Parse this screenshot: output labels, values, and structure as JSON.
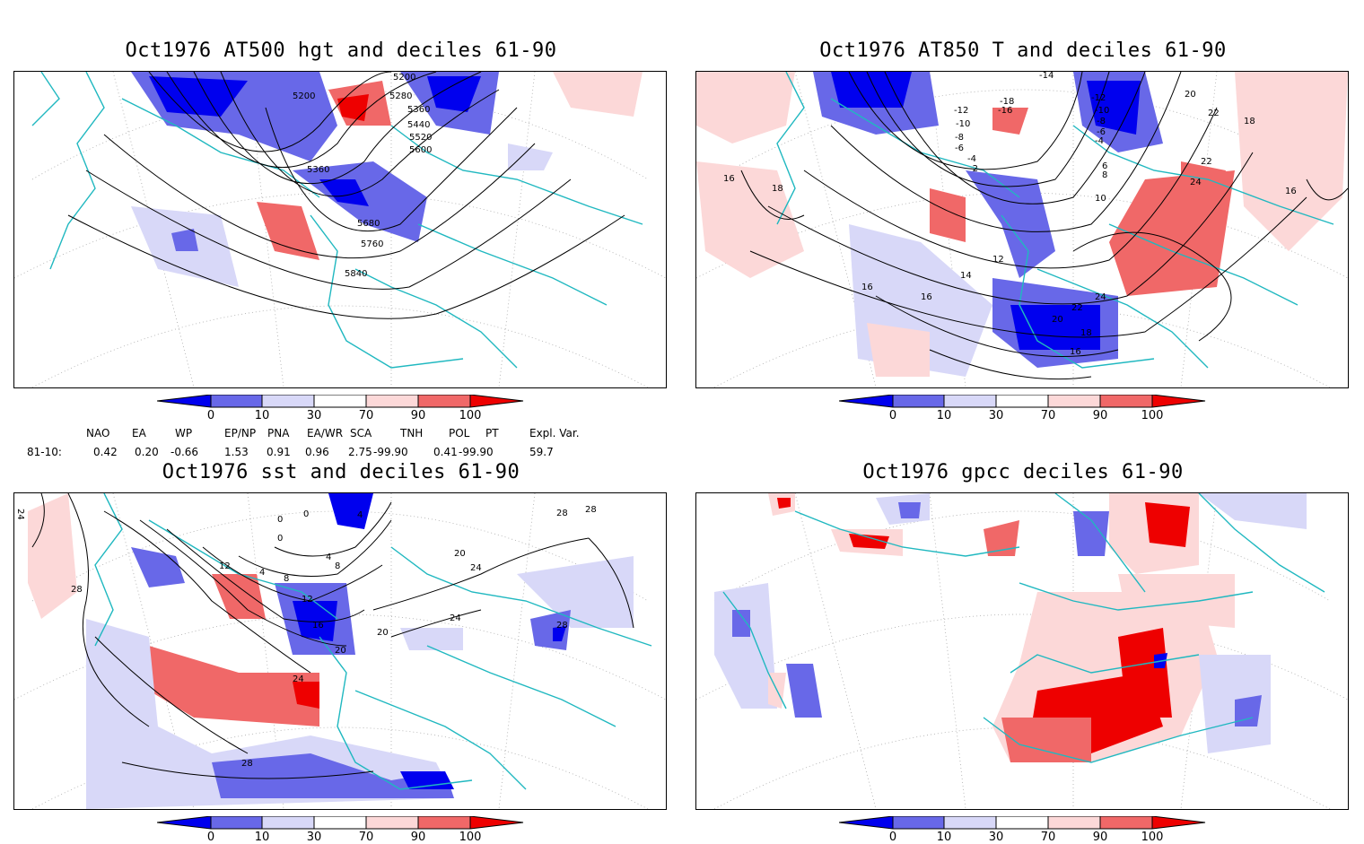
{
  "panels": [
    {
      "title": "Oct1976 AT500 hgt and deciles 61-90",
      "contour_labels": [
        "5200",
        "5200",
        "5280",
        "5360",
        "5440",
        "5520",
        "5600",
        "5360",
        "5680",
        "5760",
        "5840"
      ]
    },
    {
      "title": "Oct1976 AT850 T and deciles 61-90",
      "contour_labels": [
        "-14",
        "-12",
        "-10",
        "-18",
        "-16",
        "-8",
        "-6",
        "-4",
        "-2",
        "-12",
        "-10",
        "-8",
        "-6",
        "-4",
        "20",
        "22",
        "18",
        "22",
        "24",
        "16",
        "16",
        "18",
        "12",
        "14",
        "16",
        "16",
        "24",
        "22",
        "20",
        "18",
        "16",
        "8",
        "10",
        "6"
      ]
    },
    {
      "title": "Oct1976 sst and deciles 61-90",
      "contour_labels": [
        "24",
        "28",
        "0",
        "0",
        "0",
        "4",
        "12",
        "4",
        "8",
        "4",
        "8",
        "12",
        "16",
        "20",
        "20",
        "24",
        "24",
        "28",
        "28",
        "28",
        "28",
        "20",
        "24"
      ]
    },
    {
      "title": "Oct1976 gpcc deciles 61-90",
      "contour_labels": []
    }
  ],
  "colorbar": {
    "ticks": [
      "0",
      "10",
      "30",
      "70",
      "90",
      "100"
    ],
    "colors": [
      "#0000ee",
      "#6868e8",
      "#d8d8f8",
      "#ffffff",
      "#fcd8d8",
      "#f06868",
      "#ee0000"
    ]
  },
  "indices": {
    "headers": [
      "NAO",
      "EA",
      "WP",
      "EP/NP",
      "PNA",
      "EA/WR",
      "SCA",
      "TNH",
      "POL",
      "PT",
      "Expl. Var."
    ],
    "row_label": "81-10:",
    "values": [
      "0.42",
      "0.20",
      "-0.66",
      "1.53",
      "0.91",
      "0.96",
      "2.75",
      "-99.90",
      "0.41",
      "-99.90",
      "59.7"
    ]
  },
  "colors": {
    "coast": "#20b8c0",
    "contour": "#000000",
    "grid": "#999999"
  }
}
